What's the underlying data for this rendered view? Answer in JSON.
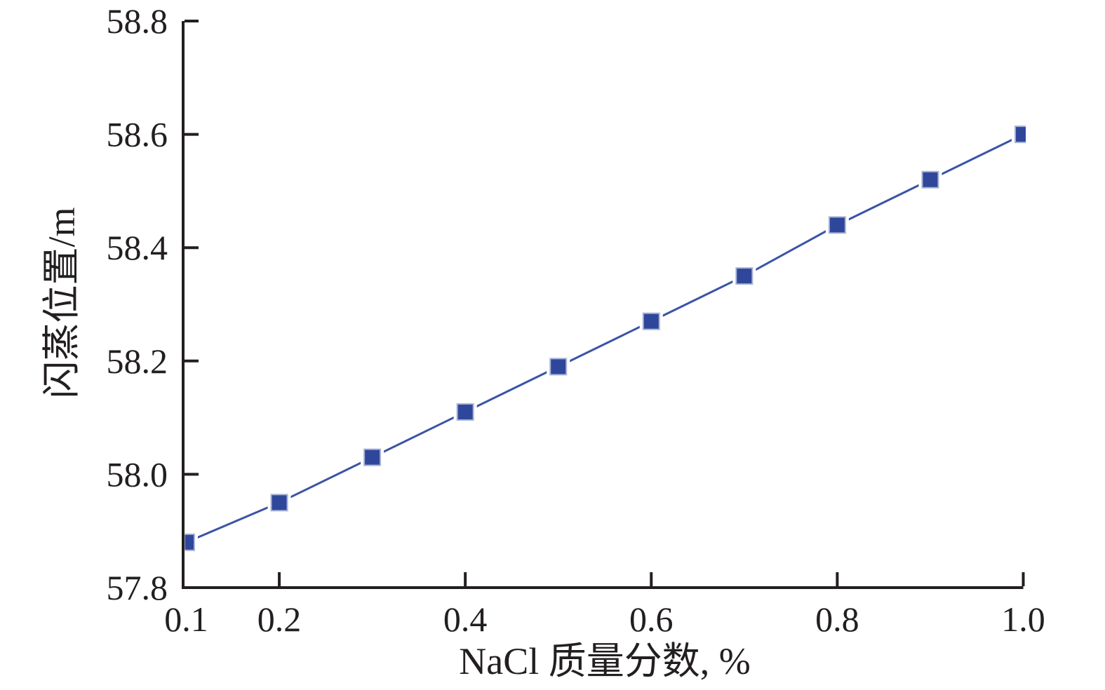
{
  "chart_data": {
    "type": "line",
    "title": "",
    "xlabel": "NaCl 质量分数, %",
    "ylabel": "闪蒸位置/m",
    "x": [
      0.1,
      0.2,
      0.3,
      0.4,
      0.5,
      0.6,
      0.7,
      0.8,
      0.9,
      1.0
    ],
    "y": [
      57.88,
      57.95,
      58.03,
      58.11,
      58.19,
      58.27,
      58.35,
      58.44,
      58.52,
      58.6
    ],
    "xlim": [
      0.1,
      1.0
    ],
    "ylim": [
      57.8,
      58.8
    ],
    "xticks": [
      {
        "value": 0.1,
        "label": "0.1",
        "mark": false
      },
      {
        "value": 0.2,
        "label": "0.2",
        "mark": true
      },
      {
        "value": 0.4,
        "label": "0.4",
        "mark": true
      },
      {
        "value": 0.6,
        "label": "0.6",
        "mark": true
      },
      {
        "value": 0.8,
        "label": "0.8",
        "mark": true
      },
      {
        "value": 1.0,
        "label": "1.0",
        "mark": true
      }
    ],
    "yticks": [
      {
        "value": 57.8,
        "label": "57.8",
        "mark": false
      },
      {
        "value": 58.0,
        "label": "58.0",
        "mark": true
      },
      {
        "value": 58.2,
        "label": "58.2",
        "mark": true
      },
      {
        "value": 58.4,
        "label": "58.4",
        "mark": true
      },
      {
        "value": 58.6,
        "label": "58.6",
        "mark": true
      },
      {
        "value": 58.8,
        "label": "58.8",
        "mark": true
      }
    ],
    "grid": false,
    "legend": false,
    "marker_shape": "square",
    "colors": {
      "line": "#3a54a5",
      "marker_fill": "#2e479b",
      "marker_edge": "#a9b3d6",
      "axis": "#231f20",
      "text": "#231f20",
      "background": "#ffffff"
    }
  }
}
